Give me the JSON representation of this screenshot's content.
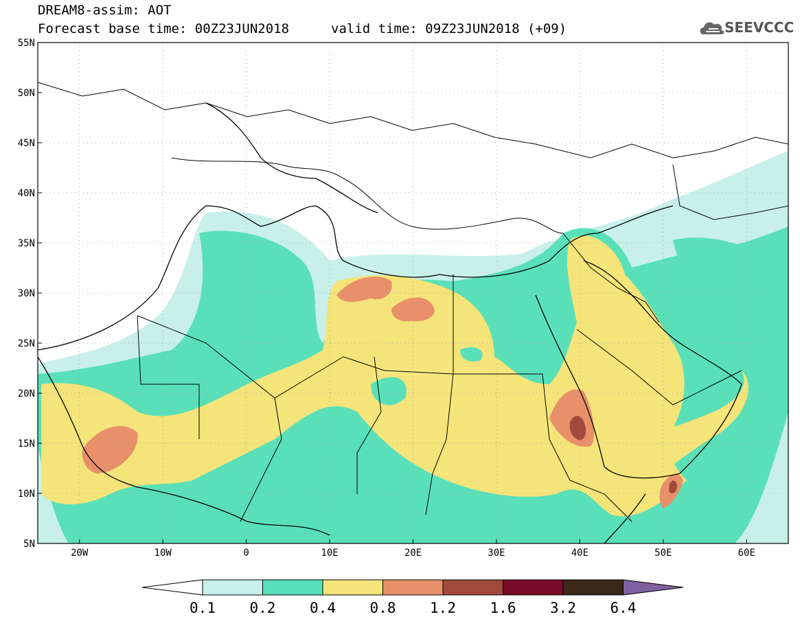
{
  "header": {
    "title": "DREAM8-assim: AOT",
    "base_time": "Forecast base time: 00Z23JUN2018",
    "valid_time": "valid time: 09Z23JUN2018 (+09)",
    "logo_text": "SEEVCCC"
  },
  "map": {
    "lat_labels": [
      "55N",
      "50N",
      "45N",
      "40N",
      "35N",
      "30N",
      "25N",
      "20N",
      "15N",
      "10N",
      "5N"
    ],
    "lon_labels": [
      "20W",
      "10W",
      "0",
      "10E",
      "20E",
      "30E",
      "40E",
      "50E",
      "60E"
    ],
    "lat_values": [
      55,
      50,
      45,
      40,
      35,
      30,
      25,
      20,
      15,
      10,
      5
    ],
    "lon_values": [
      -20,
      -10,
      0,
      10,
      20,
      30,
      40,
      50,
      60
    ],
    "lon_range": [
      -25,
      65
    ],
    "lat_range": [
      5,
      55
    ]
  },
  "colorbar": {
    "labels": [
      "0.1",
      "0.2",
      "0.4",
      "0.8",
      "1.2",
      "1.6",
      "3.2",
      "6.4"
    ],
    "colors": [
      "#ffffff",
      "#c8f0e8",
      "#5ae0b8",
      "#f5e47a",
      "#e8906a",
      "#a04a3c",
      "#7a0a2a",
      "#3c2818",
      "#8060a0"
    ]
  },
  "colors": {
    "aot_0_1": "#c8f0e8",
    "aot_0_2": "#5ae0b8",
    "aot_0_4": "#f5e47a",
    "aot_0_8": "#e8906a",
    "aot_1_2": "#a04a3c",
    "aot_1_6": "#7a0a2a"
  }
}
